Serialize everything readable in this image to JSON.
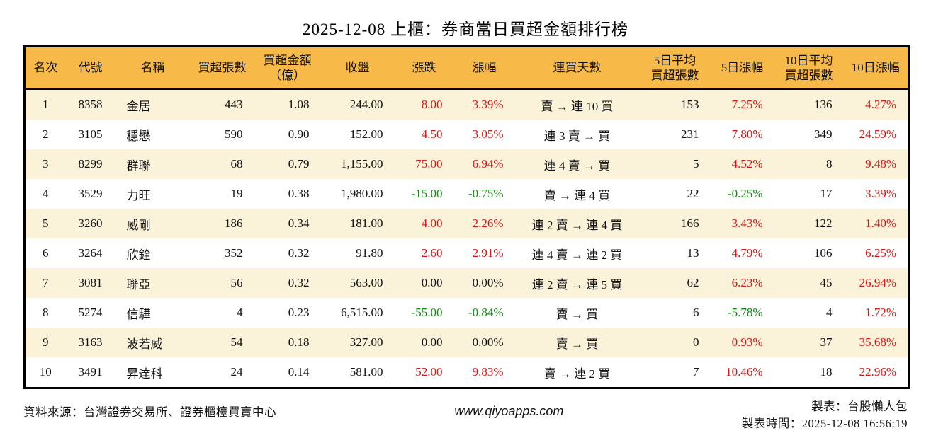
{
  "title": "2025-12-08 上櫃：券商當日買超金額排行榜",
  "colors": {
    "up": "#DC1414",
    "down": "#0E8A0E",
    "header_bg": "#F7BA49",
    "stripe_bg": "#FBF2DA",
    "border": "#000000"
  },
  "table": {
    "columns": [
      {
        "key": "rank",
        "label_lines": [
          "名次"
        ]
      },
      {
        "key": "code",
        "label_lines": [
          "代號"
        ]
      },
      {
        "key": "name",
        "label_lines": [
          "名稱"
        ]
      },
      {
        "key": "net-buy-lots",
        "label_lines": [
          "買超張數"
        ]
      },
      {
        "key": "net-buy-amount",
        "label_lines": [
          "買超金額",
          "（億）"
        ]
      },
      {
        "key": "close",
        "label_lines": [
          "收盤"
        ]
      },
      {
        "key": "change",
        "label_lines": [
          "漲跌"
        ]
      },
      {
        "key": "change-pct",
        "label_lines": [
          "漲幅"
        ]
      },
      {
        "key": "streak",
        "label_lines": [
          "連買天數"
        ]
      },
      {
        "key": "avg5-lots",
        "label_lines": [
          "5日平均",
          "買超張數"
        ]
      },
      {
        "key": "pct-5d",
        "label_lines": [
          "5日漲幅"
        ]
      },
      {
        "key": "avg10-lots",
        "label_lines": [
          "10日平均",
          "買超張數"
        ]
      },
      {
        "key": "pct-10d",
        "label_lines": [
          "10日漲幅"
        ]
      }
    ],
    "rows": [
      {
        "cells": [
          "1",
          "8358",
          "金居",
          "443",
          "1.08",
          "244.00",
          "8.00",
          "3.39%",
          "賣 → 連 10 買",
          "153",
          "7.25%",
          "136",
          "4.27%"
        ],
        "tones": [
          null,
          null,
          null,
          null,
          null,
          null,
          "up",
          "up",
          null,
          null,
          "up",
          null,
          "up"
        ]
      },
      {
        "cells": [
          "2",
          "3105",
          "穩懋",
          "590",
          "0.90",
          "152.00",
          "4.50",
          "3.05%",
          "連 3 賣 → 買",
          "231",
          "7.80%",
          "349",
          "24.59%"
        ],
        "tones": [
          null,
          null,
          null,
          null,
          null,
          null,
          "up",
          "up",
          null,
          null,
          "up",
          null,
          "up"
        ]
      },
      {
        "cells": [
          "3",
          "8299",
          "群聯",
          "68",
          "0.79",
          "1,155.00",
          "75.00",
          "6.94%",
          "連 4 賣 → 買",
          "5",
          "4.52%",
          "8",
          "9.48%"
        ],
        "tones": [
          null,
          null,
          null,
          null,
          null,
          null,
          "up",
          "up",
          null,
          null,
          "up",
          null,
          "up"
        ]
      },
      {
        "cells": [
          "4",
          "3529",
          "力旺",
          "19",
          "0.38",
          "1,980.00",
          "-15.00",
          "-0.75%",
          "賣 → 連 4 買",
          "22",
          "-0.25%",
          "17",
          "3.39%"
        ],
        "tones": [
          null,
          null,
          null,
          null,
          null,
          null,
          "down",
          "down",
          null,
          null,
          "down",
          null,
          "up"
        ]
      },
      {
        "cells": [
          "5",
          "3260",
          "威剛",
          "186",
          "0.34",
          "181.00",
          "4.00",
          "2.26%",
          "連 2 賣 → 連 4 買",
          "166",
          "3.43%",
          "122",
          "1.40%"
        ],
        "tones": [
          null,
          null,
          null,
          null,
          null,
          null,
          "up",
          "up",
          null,
          null,
          "up",
          null,
          "up"
        ]
      },
      {
        "cells": [
          "6",
          "3264",
          "欣銓",
          "352",
          "0.32",
          "91.80",
          "2.60",
          "2.91%",
          "連 4 賣 → 連 2 買",
          "13",
          "4.79%",
          "106",
          "6.25%"
        ],
        "tones": [
          null,
          null,
          null,
          null,
          null,
          null,
          "up",
          "up",
          null,
          null,
          "up",
          null,
          "up"
        ]
      },
      {
        "cells": [
          "7",
          "3081",
          "聯亞",
          "56",
          "0.32",
          "563.00",
          "0.00",
          "0.00%",
          "連 2 賣 → 連 5 買",
          "62",
          "6.23%",
          "45",
          "26.94%"
        ],
        "tones": [
          null,
          null,
          null,
          null,
          null,
          null,
          "flat",
          "flat",
          null,
          null,
          "up",
          null,
          "up"
        ]
      },
      {
        "cells": [
          "8",
          "5274",
          "信驊",
          "4",
          "0.23",
          "6,515.00",
          "-55.00",
          "-0.84%",
          "賣 → 買",
          "6",
          "-5.78%",
          "4",
          "1.72%"
        ],
        "tones": [
          null,
          null,
          null,
          null,
          null,
          null,
          "down",
          "down",
          null,
          null,
          "down",
          null,
          "up"
        ]
      },
      {
        "cells": [
          "9",
          "3163",
          "波若威",
          "54",
          "0.18",
          "327.00",
          "0.00",
          "0.00%",
          "賣 → 買",
          "0",
          "0.93%",
          "37",
          "35.68%"
        ],
        "tones": [
          null,
          null,
          null,
          null,
          null,
          null,
          "flat",
          "flat",
          null,
          null,
          "up",
          null,
          "up"
        ]
      },
      {
        "cells": [
          "10",
          "3491",
          "昇達科",
          "24",
          "0.14",
          "581.00",
          "52.00",
          "9.83%",
          "賣 → 連 2 買",
          "7",
          "10.46%",
          "18",
          "22.96%"
        ],
        "tones": [
          null,
          null,
          null,
          null,
          null,
          null,
          "up",
          "up",
          null,
          null,
          "up",
          null,
          "up"
        ]
      }
    ]
  },
  "footer": {
    "source": "資料來源：台灣證券交易所、證券櫃檯買賣中心",
    "website": "www.qiyoapps.com",
    "author": "製表：台股懶人包",
    "timestamp": "製表時間：2025-12-08 16:56:19"
  }
}
